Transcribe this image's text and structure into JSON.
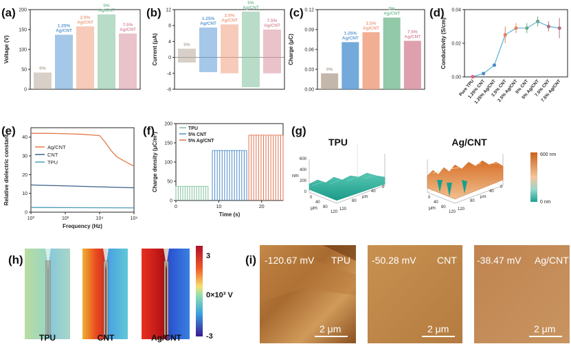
{
  "panel_letters": [
    "(a)",
    "(b)",
    "(c)",
    "(d)",
    "(e)",
    "(f)",
    "(g)",
    "(h)",
    "(i)"
  ],
  "chart_data": [
    {
      "panel": "(a)",
      "type": "bar",
      "ylabel": "Voltage (V)",
      "ylim": [
        0,
        200
      ],
      "yticks": [
        0,
        50,
        100,
        150,
        200
      ],
      "categories": [
        "0%",
        "1.25% Ag/CNT",
        "2.5% Ag/CNT",
        "5% Ag/CNT",
        "7.5% Ag/CNT"
      ],
      "values": [
        42,
        137,
        158,
        188,
        140
      ],
      "colors": [
        "#b8a99b",
        "#5b9bd5",
        "#f0a080",
        "#7fbf9a",
        "#d98f9f"
      ]
    },
    {
      "panel": "(b)",
      "type": "bar",
      "ylabel": "Current (μA)",
      "ylim": [
        -8,
        12
      ],
      "yticks": [
        -8,
        -4,
        0,
        4,
        8,
        12
      ],
      "categories": [
        "0%",
        "1.25% Ag/CNT",
        "2.5% Ag/CNT",
        "5% Ag/CNT",
        "7.5% Ag/CNT"
      ],
      "max": [
        2.2,
        7.5,
        8.3,
        11.5,
        7.0
      ],
      "min": [
        -1.3,
        -3.7,
        -4.0,
        -7.5,
        -4.0
      ],
      "colors": [
        "#b8a99b",
        "#5b9bd5",
        "#f0a080",
        "#7fbf9a",
        "#d98f9f"
      ]
    },
    {
      "panel": "(c)",
      "type": "bar",
      "ylabel": "Charge (μC)",
      "ylim": [
        0,
        0.12
      ],
      "yticks": [
        0.0,
        0.03,
        0.06,
        0.09,
        0.12
      ],
      "categories": [
        "0%",
        "1.25% Ag/CNT",
        "2.5% Ag/CNT",
        "5% Ag/CNT",
        "7.5% Ag/CNT"
      ],
      "values": [
        0.024,
        0.071,
        0.086,
        0.108,
        0.073
      ],
      "colors": [
        "#b8a99b",
        "#5b9bd5",
        "#f0a080",
        "#7fbf9a",
        "#d98f9f"
      ]
    },
    {
      "panel": "(d)",
      "type": "line",
      "ylabel": "Conductivity (S/cm)",
      "ylim": [
        0,
        0.04
      ],
      "yticks": [
        0.0,
        0.02,
        0.04
      ],
      "categories": [
        "Pure TPU",
        "1.25% CNT",
        "1.25% Ag/CNT",
        "2.5% CNT",
        "2.5% Ag/CNT",
        "5% CNT",
        "5% Ag/CNT",
        "7.5% CNT",
        "7.5% Ag/CNT"
      ],
      "values": [
        0.0001,
        0.002,
        0.007,
        0.025,
        0.029,
        0.029,
        0.033,
        0.03,
        0.029
      ],
      "errors": [
        0.0003,
        0.001,
        0.001,
        0.005,
        0.003,
        0.003,
        0.003,
        0.003,
        0.006
      ],
      "point_colors": [
        "#e0617a",
        "#4a8ac9",
        "#4a8ac9",
        "#e88060",
        "#e88060",
        "#6aa98a",
        "#6aa98a",
        "#b0707f",
        "#b0707f"
      ]
    },
    {
      "panel": "(e)",
      "type": "line",
      "xlabel": "Frequency (Hz)",
      "ylabel": "Relative dielectric constant",
      "xscale": "log",
      "xlim": [
        1,
        1000000
      ],
      "xticks": [
        "10⁰",
        "10²",
        "10⁴",
        "10⁶"
      ],
      "ylim": [
        0,
        45
      ],
      "yticks": [
        0,
        10,
        20,
        30,
        40
      ],
      "series": [
        {
          "name": "Ag/CNT",
          "color": "#e07a45",
          "x": [
            1,
            10,
            100,
            1000,
            10000,
            20000,
            50000,
            100000,
            300000,
            1000000
          ],
          "y": [
            42,
            42,
            41.8,
            41.5,
            40.8,
            37.5,
            32.5,
            29.5,
            27,
            24.5
          ]
        },
        {
          "name": "CNT",
          "color": "#3a5f88",
          "x": [
            1,
            1000000
          ],
          "y": [
            14.5,
            13
          ]
        },
        {
          "name": "TPU",
          "color": "#4a9bb8",
          "x": [
            1,
            1000000
          ],
          "y": [
            2.5,
            2.3
          ]
        }
      ]
    },
    {
      "panel": "(f)",
      "type": "line",
      "xlabel": "Time (s)",
      "ylabel": "Charge density (μC/m²)",
      "xlim": [
        0,
        25
      ],
      "xticks": [
        0,
        10,
        20
      ],
      "ylim": [
        0,
        200
      ],
      "yticks": [
        0,
        50,
        100,
        150,
        200
      ],
      "series": [
        {
          "name": "TPU",
          "color": "#7fbf9a",
          "t_range": [
            0,
            7.5
          ],
          "peak": 37
        },
        {
          "name": "5% CNT",
          "color": "#4a8ac9",
          "t_range": [
            8.5,
            16.5
          ],
          "peak": 130
        },
        {
          "name": "5% Ag/CNT",
          "color": "#e0704a",
          "t_range": [
            17,
            25
          ],
          "peak": 170
        }
      ]
    }
  ],
  "panel_g": {
    "titles": [
      "TPU",
      "Ag/CNT"
    ],
    "z_label": "nm",
    "x_label": "μm",
    "y_label": "μm",
    "z_ticks": [
      "0",
      "200",
      "400",
      "600"
    ],
    "xy_ticks": [
      "0",
      "40",
      "80",
      "120"
    ],
    "colorbar_max": "600 nm",
    "colorbar_min": "0 nm"
  },
  "panel_h": {
    "labels": [
      "TPU",
      "CNT",
      "Ag/CNT"
    ],
    "colorbar_ticks": [
      "3",
      "0×10³ V",
      "-3"
    ]
  },
  "panel_i": {
    "tiles": [
      {
        "potential": "-120.67 mV",
        "material": "TPU",
        "scale": "2 μm"
      },
      {
        "potential": "-50.28 mV",
        "material": "CNT",
        "scale": "2 μm"
      },
      {
        "potential": "-38.47 mV",
        "material": "Ag/CNT",
        "scale": "2 μm"
      }
    ]
  },
  "colors": {
    "green": "#7fbf9a",
    "blue": "#5b9bd5",
    "orange": "#f0a080",
    "pink": "#d98f9f",
    "grey": "#b8a99b"
  }
}
